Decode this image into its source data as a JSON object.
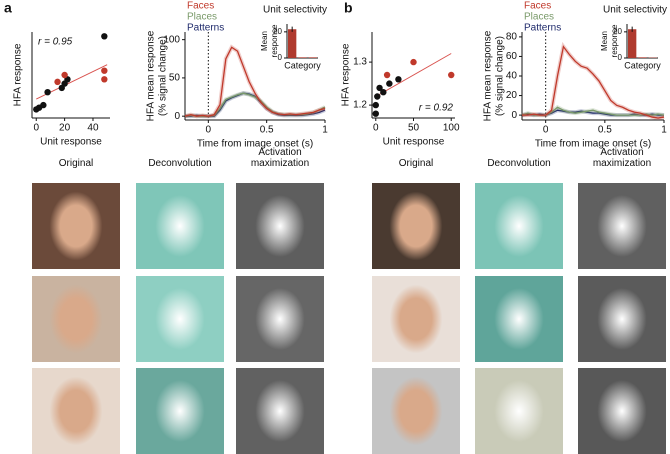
{
  "panels": [
    "a",
    "b"
  ],
  "image_grid": [
    {
      "headers": [
        "Original",
        "Deconvolution",
        "Activation maximization"
      ]
    },
    {
      "headers": [
        "Original",
        "Deconvolution",
        "Activation maximization"
      ]
    }
  ],
  "chart_data": [
    {
      "type": "scatter",
      "x_label": "Unit response",
      "y_label": [
        "HFA response"
      ],
      "annotation": "r = 0.95",
      "xlim": [
        -3,
        52
      ],
      "ylim": [
        0,
        1
      ],
      "xticks": [
        0,
        20,
        40
      ],
      "series": [
        {
          "color": "#111111",
          "x": [
            0,
            2,
            5,
            8,
            18,
            20,
            22,
            48
          ],
          "values": [
            0.1,
            0.12,
            0.15,
            0.3,
            0.35,
            0.4,
            0.45,
            0.95
          ]
        },
        {
          "color": "#c0392b",
          "x": [
            15,
            20,
            48,
            48
          ],
          "values": [
            0.42,
            0.5,
            0.55,
            0.45
          ]
        }
      ],
      "trend_line": {
        "color": "#d9534f",
        "x": [
          0,
          50
        ],
        "values": [
          0.22,
          0.62
        ]
      }
    },
    {
      "type": "line",
      "x_label": "Time from image onset (s)",
      "y_label": [
        "HFA mean response",
        "(% signal change)"
      ],
      "xlim": [
        -0.2,
        1
      ],
      "ylim": [
        -5,
        110
      ],
      "xticks": [
        0,
        0.5,
        1
      ],
      "yticks": [
        0,
        50,
        100
      ],
      "onset_line": 0,
      "x": [
        -0.2,
        -0.15,
        -0.1,
        -0.05,
        0,
        0.05,
        0.1,
        0.15,
        0.2,
        0.25,
        0.3,
        0.35,
        0.4,
        0.45,
        0.5,
        0.55,
        0.6,
        0.65,
        0.7,
        0.75,
        0.8,
        0.85,
        0.9,
        0.95,
        1
      ],
      "series": [
        {
          "name": "Faces",
          "color": "#c0392b",
          "values": [
            0,
            2,
            0,
            1,
            0,
            2,
            15,
            75,
            90,
            85,
            65,
            45,
            30,
            18,
            10,
            5,
            3,
            2,
            3,
            2,
            3,
            4,
            5,
            8,
            10
          ]
        },
        {
          "name": "Places",
          "color": "#7a9a6a",
          "values": [
            0,
            1,
            0,
            0,
            0,
            1,
            10,
            22,
            25,
            28,
            30,
            28,
            25,
            20,
            12,
            6,
            3,
            2,
            2,
            2,
            2,
            3,
            5,
            8,
            12
          ]
        },
        {
          "name": "Patterns",
          "color": "#1f2a6b",
          "values": [
            0,
            0,
            1,
            0,
            0,
            0,
            8,
            20,
            24,
            27,
            30,
            29,
            26,
            18,
            10,
            5,
            2,
            1,
            1,
            1,
            1,
            2,
            3,
            5,
            8
          ]
        }
      ]
    },
    {
      "type": "bar",
      "title": "Unit selectivity",
      "x_label": "Category",
      "y_label": [
        "Mean",
        "response"
      ],
      "categories": [
        null,
        null,
        null
      ],
      "values": [
        22,
        0.5,
        0.5
      ],
      "errors": [
        2,
        0,
        0
      ],
      "color": "#b03a2e",
      "ylim": [
        0,
        26
      ],
      "yticks": [
        0,
        20
      ]
    },
    {
      "type": "scatter",
      "x_label": "Unit response",
      "y_label": [
        "HFA response"
      ],
      "annotation": "r = 0.92",
      "xlim": [
        -5,
        105
      ],
      "ylim": [
        1.17,
        1.37
      ],
      "xticks": [
        0,
        50,
        100
      ],
      "yticks": [
        1.2,
        1.3
      ],
      "series": [
        {
          "color": "#111111",
          "x": [
            0,
            0,
            2,
            5,
            10,
            18,
            30
          ],
          "values": [
            1.18,
            1.2,
            1.22,
            1.24,
            1.23,
            1.25,
            1.26
          ]
        },
        {
          "color": "#c0392b",
          "x": [
            15,
            50,
            100
          ],
          "values": [
            1.27,
            1.3,
            1.27
          ]
        }
      ],
      "trend_line": {
        "color": "#d9534f",
        "x": [
          0,
          100
        ],
        "values": [
          1.22,
          1.32
        ]
      }
    },
    {
      "type": "line",
      "x_label": "Time from image onset (s)",
      "y_label": [
        "HFA mean response",
        "(% signal change)"
      ],
      "xlim": [
        -0.2,
        1
      ],
      "ylim": [
        -5,
        85
      ],
      "xticks": [
        0,
        0.5,
        1
      ],
      "yticks": [
        0,
        20,
        40,
        60,
        80
      ],
      "onset_line": 0,
      "x": [
        -0.2,
        -0.15,
        -0.1,
        -0.05,
        0,
        0.05,
        0.1,
        0.15,
        0.2,
        0.25,
        0.3,
        0.35,
        0.4,
        0.45,
        0.5,
        0.55,
        0.6,
        0.65,
        0.7,
        0.75,
        0.8,
        0.85,
        0.9,
        0.95,
        1
      ],
      "series": [
        {
          "name": "Faces",
          "color": "#c0392b",
          "values": [
            0,
            0,
            1,
            0,
            0,
            5,
            40,
            70,
            62,
            55,
            50,
            48,
            42,
            35,
            25,
            15,
            10,
            8,
            5,
            3,
            2,
            0,
            -2,
            -3,
            -2
          ]
        },
        {
          "name": "Places",
          "color": "#7a9a6a",
          "values": [
            0,
            2,
            0,
            0,
            0,
            3,
            8,
            5,
            3,
            2,
            3,
            4,
            5,
            3,
            2,
            1,
            0,
            0,
            0,
            0,
            0,
            1,
            0,
            1,
            0
          ]
        },
        {
          "name": "Patterns",
          "color": "#1f2a6b",
          "values": [
            0,
            1,
            0,
            1,
            0,
            2,
            5,
            4,
            3,
            3,
            4,
            3,
            2,
            2,
            1,
            0,
            0,
            0,
            0,
            1,
            0,
            0,
            1,
            0,
            0
          ]
        }
      ]
    },
    {
      "type": "bar",
      "title": "Unit selectivity",
      "x_label": "Category",
      "y_label": [
        "Mean",
        "response"
      ],
      "categories": [
        null,
        null,
        null
      ],
      "values": [
        22,
        0.5,
        0.3
      ],
      "errors": [
        2,
        0,
        0
      ],
      "color": "#b03a2e",
      "ylim": [
        0,
        26
      ],
      "yticks": [
        0,
        20
      ]
    }
  ]
}
